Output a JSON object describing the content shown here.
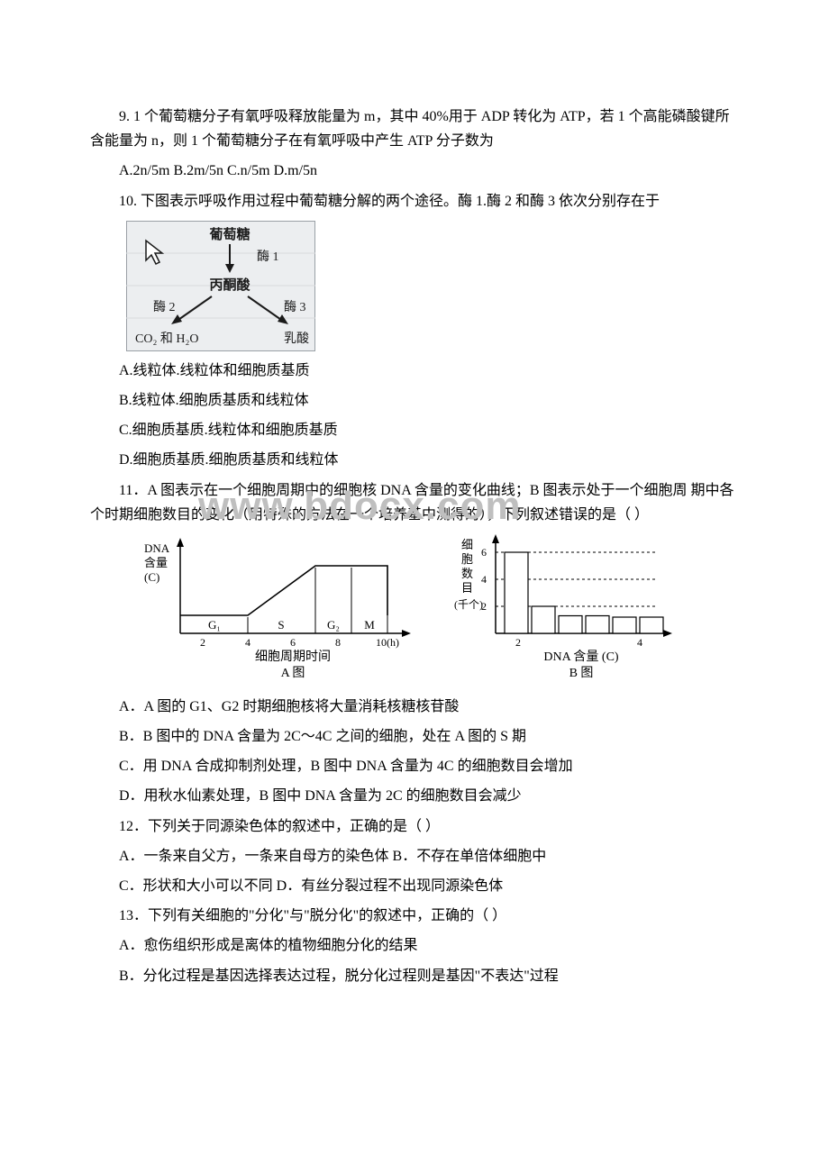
{
  "watermark": "www.bdocx.com",
  "q9": {
    "text": "9. 1 个葡萄糖分子有氧呼吸释放能量为 m，其中 40%用于 ADP 转化为 ATP，若 1 个高能磷酸键所含能量为 n，则 1 个葡萄糖分子在有氧呼吸中产生 ATP 分子数为",
    "opts": "A.2n/5m  B.2m/5n C.n/5m D.m/5n"
  },
  "q10": {
    "text": "10. 下图表示呼吸作用过程中葡萄糖分解的两个途径。酶 1.酶 2 和酶 3 依次分别存在于",
    "diagram": {
      "top": "葡萄糖",
      "e1": "酶 1",
      "mid": "丙酮酸",
      "e2": "酶 2",
      "e3": "酶 3",
      "left": "CO₂ 和 H₂O",
      "right": "乳酸",
      "bg": "#eceef0",
      "text_color": "#1a1a1a",
      "font_size": 15
    },
    "A": "A.线粒体.线粒体和细胞质基质",
    "B": "B.线粒体.细胞质基质和线粒体",
    "C": "C.细胞质基质.线粒体和细胞质基质",
    "D": "D.细胞质基质.细胞质基质和线粒体"
  },
  "q11": {
    "text": "11．A 图表示在一个细胞周期中的细胞核 DNA 含量的变化曲线；B 图表示处于一个细胞周 期中各个时期细胞数目的变化（用特殊的方法在一个培养基中测得的），下列叙述错误的是（ ）",
    "chartA": {
      "ylabel_lines": [
        "DNA",
        "含量",
        "(C)"
      ],
      "xlabel": "细胞周期时间",
      "caption": "A 图",
      "phases": [
        "G₁",
        "S",
        "G₂",
        "M"
      ],
      "xticks": [
        "2",
        "4",
        "6",
        "8",
        "10(h)"
      ],
      "axis_color": "#000000",
      "font_size": 13
    },
    "chartB": {
      "ylabel_lines": [
        "细",
        "胞",
        "数",
        "目",
        "(千个)"
      ],
      "yticks": [
        "6",
        "4",
        "2"
      ],
      "xlabel": "DNA 含量 (C)",
      "caption": "B 图",
      "xticks": [
        "2",
        "4"
      ],
      "bars": [
        {
          "x": 1,
          "h": 6
        },
        {
          "x": 2,
          "h": 2
        },
        {
          "x": 2.4,
          "h": 1.3
        },
        {
          "x": 2.8,
          "h": 1.3
        },
        {
          "x": 3.2,
          "h": 1.2
        },
        {
          "x": 3.6,
          "h": 1.2
        }
      ],
      "bar_fill": "#ffffff",
      "bar_stroke": "#000000",
      "axis_color": "#000000",
      "dash": "3,3",
      "font_size": 13
    },
    "A": "A．A 图的 G1、G2 时期细胞核将大量消耗核糖核苷酸",
    "B": "B．B 图中的 DNA 含量为 2C～4C 之间的细胞，处在 A 图的 S 期",
    "C": "C．用 DNA 合成抑制剂处理，B 图中 DNA 含量为 4C 的细胞数目会增加",
    "D": "D．用秋水仙素处理，B 图中 DNA 含量为 2C 的细胞数目会减少"
  },
  "q12": {
    "text": "12．下列关于同源染色体的叙述中，正确的是（ ）",
    "row1": "A．一条来自父方，一条来自母方的染色体 B．不存在单倍体细胞中",
    "row2": "C．形状和大小可以不同 D．有丝分裂过程不出现同源染色体"
  },
  "q13": {
    "text": "13．下列有关细胞的\"分化\"与\"脱分化\"的叙述中，正确的（ ）",
    "A": "A．愈伤组织形成是离体的植物细胞分化的结果",
    "B": "B．分化过程是基因选择表达过程，脱分化过程则是基因\"不表达\"过程"
  }
}
